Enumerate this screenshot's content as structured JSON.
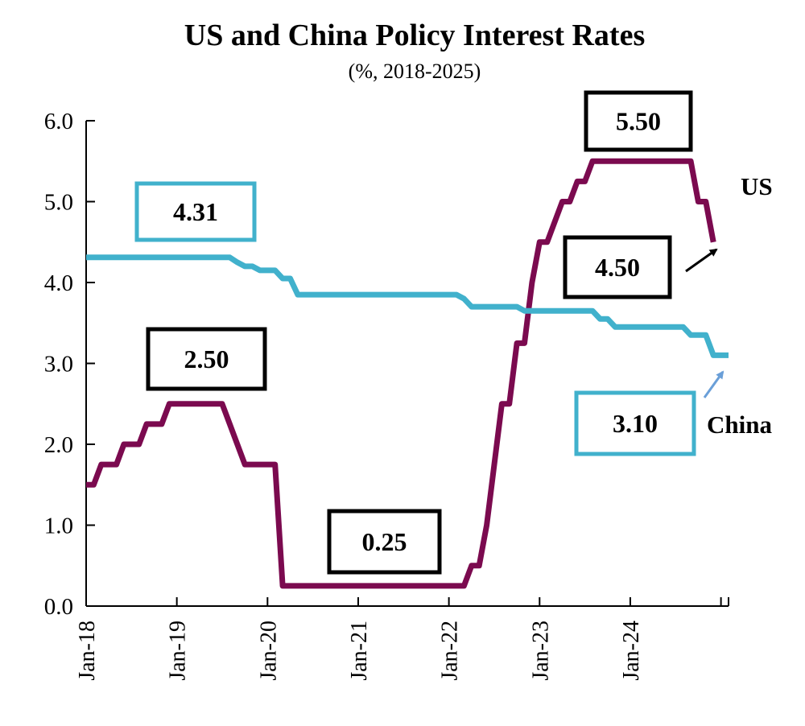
{
  "chart_data": {
    "type": "line",
    "title": "US and China Policy Interest Rates",
    "subtitle": "(%, 2018-2025)",
    "xlabel": "",
    "ylabel": "",
    "ylim": [
      0,
      6
    ],
    "yticks": [
      "0.0",
      "1.0",
      "2.0",
      "3.0",
      "4.0",
      "5.0",
      "6.0"
    ],
    "xlim": [
      "Jan-18",
      "Dec-24"
    ],
    "xticks": [
      "Jan-18",
      "Jan-19",
      "Jan-20",
      "Jan-21",
      "Jan-22",
      "Jan-23",
      "Jan-24"
    ],
    "series": [
      {
        "name": "US",
        "color": "#7b0a4f",
        "points": [
          [
            0,
            1.5
          ],
          [
            1,
            1.5
          ],
          [
            2,
            1.75
          ],
          [
            4,
            1.75
          ],
          [
            5,
            2.0
          ],
          [
            7,
            2.0
          ],
          [
            8,
            2.25
          ],
          [
            10,
            2.25
          ],
          [
            11,
            2.5
          ],
          [
            18,
            2.5
          ],
          [
            19,
            2.25
          ],
          [
            20,
            2.0
          ],
          [
            21,
            1.75
          ],
          [
            25,
            1.75
          ],
          [
            26,
            0.25
          ],
          [
            50,
            0.25
          ],
          [
            51,
            0.5
          ],
          [
            52,
            0.5
          ],
          [
            53,
            1.0
          ],
          [
            54,
            1.75
          ],
          [
            55,
            2.5
          ],
          [
            56,
            2.5
          ],
          [
            57,
            3.25
          ],
          [
            58,
            3.25
          ],
          [
            59,
            4.0
          ],
          [
            60,
            4.5
          ],
          [
            61,
            4.5
          ],
          [
            62,
            4.75
          ],
          [
            63,
            5.0
          ],
          [
            64,
            5.0
          ],
          [
            65,
            5.25
          ],
          [
            66,
            5.25
          ],
          [
            67,
            5.5
          ],
          [
            80,
            5.5
          ],
          [
            81,
            5.0
          ],
          [
            82,
            5.0
          ],
          [
            83,
            4.5
          ]
        ]
      },
      {
        "name": "China",
        "color": "#41b1cc",
        "points": [
          [
            0,
            4.31
          ],
          [
            19,
            4.31
          ],
          [
            20,
            4.25
          ],
          [
            21,
            4.2
          ],
          [
            22,
            4.2
          ],
          [
            23,
            4.15
          ],
          [
            25,
            4.15
          ],
          [
            26,
            4.05
          ],
          [
            27,
            4.05
          ],
          [
            28,
            3.85
          ],
          [
            49,
            3.85
          ],
          [
            50,
            3.8
          ],
          [
            51,
            3.7
          ],
          [
            57,
            3.7
          ],
          [
            58,
            3.65
          ],
          [
            67,
            3.65
          ],
          [
            68,
            3.55
          ],
          [
            69,
            3.55
          ],
          [
            70,
            3.45
          ],
          [
            79,
            3.45
          ],
          [
            80,
            3.35
          ],
          [
            82,
            3.35
          ],
          [
            83,
            3.1
          ],
          [
            85,
            3.1
          ]
        ]
      }
    ],
    "annotations": [
      {
        "text": "4.31",
        "series": "China",
        "border": "#41b1cc"
      },
      {
        "text": "2.50",
        "series": "US",
        "border": "#000000"
      },
      {
        "text": "0.25",
        "series": "US",
        "border": "#000000"
      },
      {
        "text": "5.50",
        "series": "US",
        "border": "#000000"
      },
      {
        "text": "4.50",
        "series": "US",
        "border": "#000000"
      },
      {
        "text": "3.10",
        "series": "China",
        "border": "#41b1cc"
      }
    ],
    "legend": [
      {
        "label": "US",
        "placement": "right"
      },
      {
        "label": "China",
        "placement": "right"
      }
    ],
    "grid": false
  }
}
